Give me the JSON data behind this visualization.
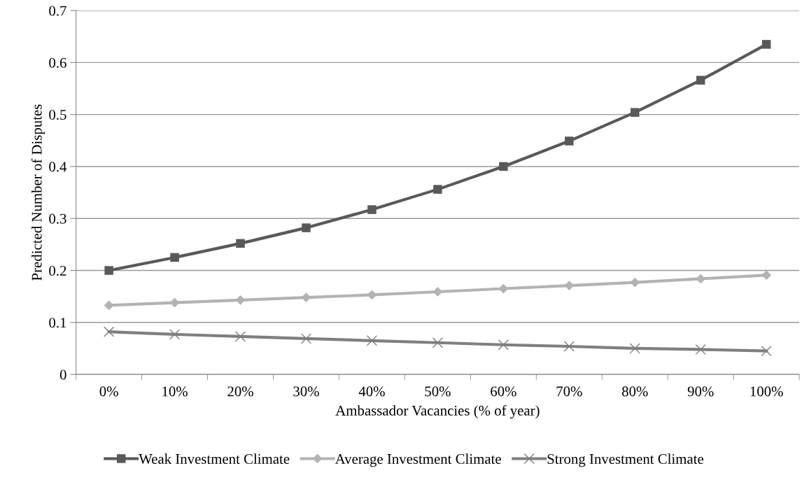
{
  "chart_data": {
    "type": "line",
    "xlabel": "Ambassador Vacancies (% of year)",
    "ylabel": "Predicted Number of Disputes",
    "categories": [
      "0%",
      "10%",
      "20%",
      "30%",
      "40%",
      "50%",
      "60%",
      "70%",
      "80%",
      "90%",
      "100%"
    ],
    "series": [
      {
        "name": "Weak Investment Climate",
        "color": "#595959",
        "marker": "square",
        "values": [
          0.2,
          0.225,
          0.252,
          0.282,
          0.317,
          0.356,
          0.4,
          0.449,
          0.504,
          0.566,
          0.635
        ]
      },
      {
        "name": "Average Investment Climate",
        "color": "#b3b3b3",
        "marker": "diamond",
        "values": [
          0.133,
          0.138,
          0.143,
          0.148,
          0.153,
          0.159,
          0.165,
          0.171,
          0.177,
          0.184,
          0.191
        ]
      },
      {
        "name": "Strong Investment Climate",
        "color": "#7f7f7f",
        "marker": "cross",
        "values": [
          0.082,
          0.077,
          0.073,
          0.069,
          0.065,
          0.061,
          0.057,
          0.054,
          0.05,
          0.048,
          0.045
        ]
      }
    ],
    "ylim": [
      0,
      0.7
    ],
    "yticks": [
      0,
      0.1,
      0.2,
      0.3,
      0.4,
      0.5,
      0.6,
      0.7
    ],
    "grid": "y",
    "legend": "bottom",
    "line_style": "solid"
  }
}
